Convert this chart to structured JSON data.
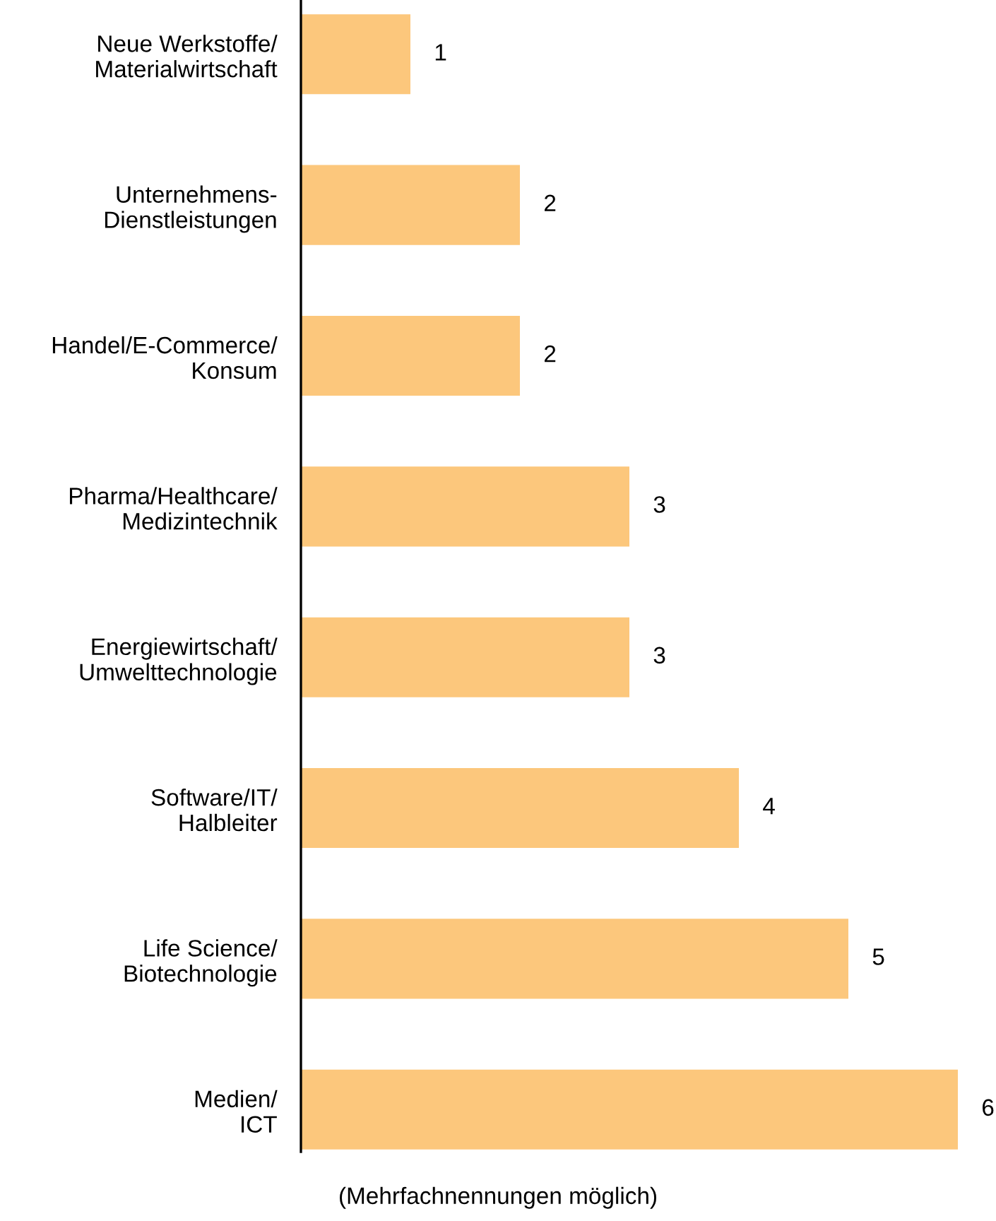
{
  "chart_data": {
    "type": "bar",
    "orientation": "horizontal",
    "categories": [
      "Neue Werkstoffe/\nMaterialwirtschaft",
      "Unternehmens-\nDienstleistungen",
      "Handel/E-Commerce/\nKonsum",
      "Pharma/Healthcare/\nMedizintechnik",
      "Energiewirtschaft/\nUmwelttechnologie",
      "Software/IT/\nHalbleiter",
      "Life Science/\nBiotechnologie",
      "Medien/\nICT"
    ],
    "values": [
      1,
      2,
      2,
      3,
      3,
      4,
      5,
      6
    ],
    "color": "#fcc77c",
    "data_labels": true,
    "tick_labels": "y",
    "grid": false,
    "legend": false,
    "annotations": [
      "(Mehrfachnennungen möglich)"
    ]
  }
}
